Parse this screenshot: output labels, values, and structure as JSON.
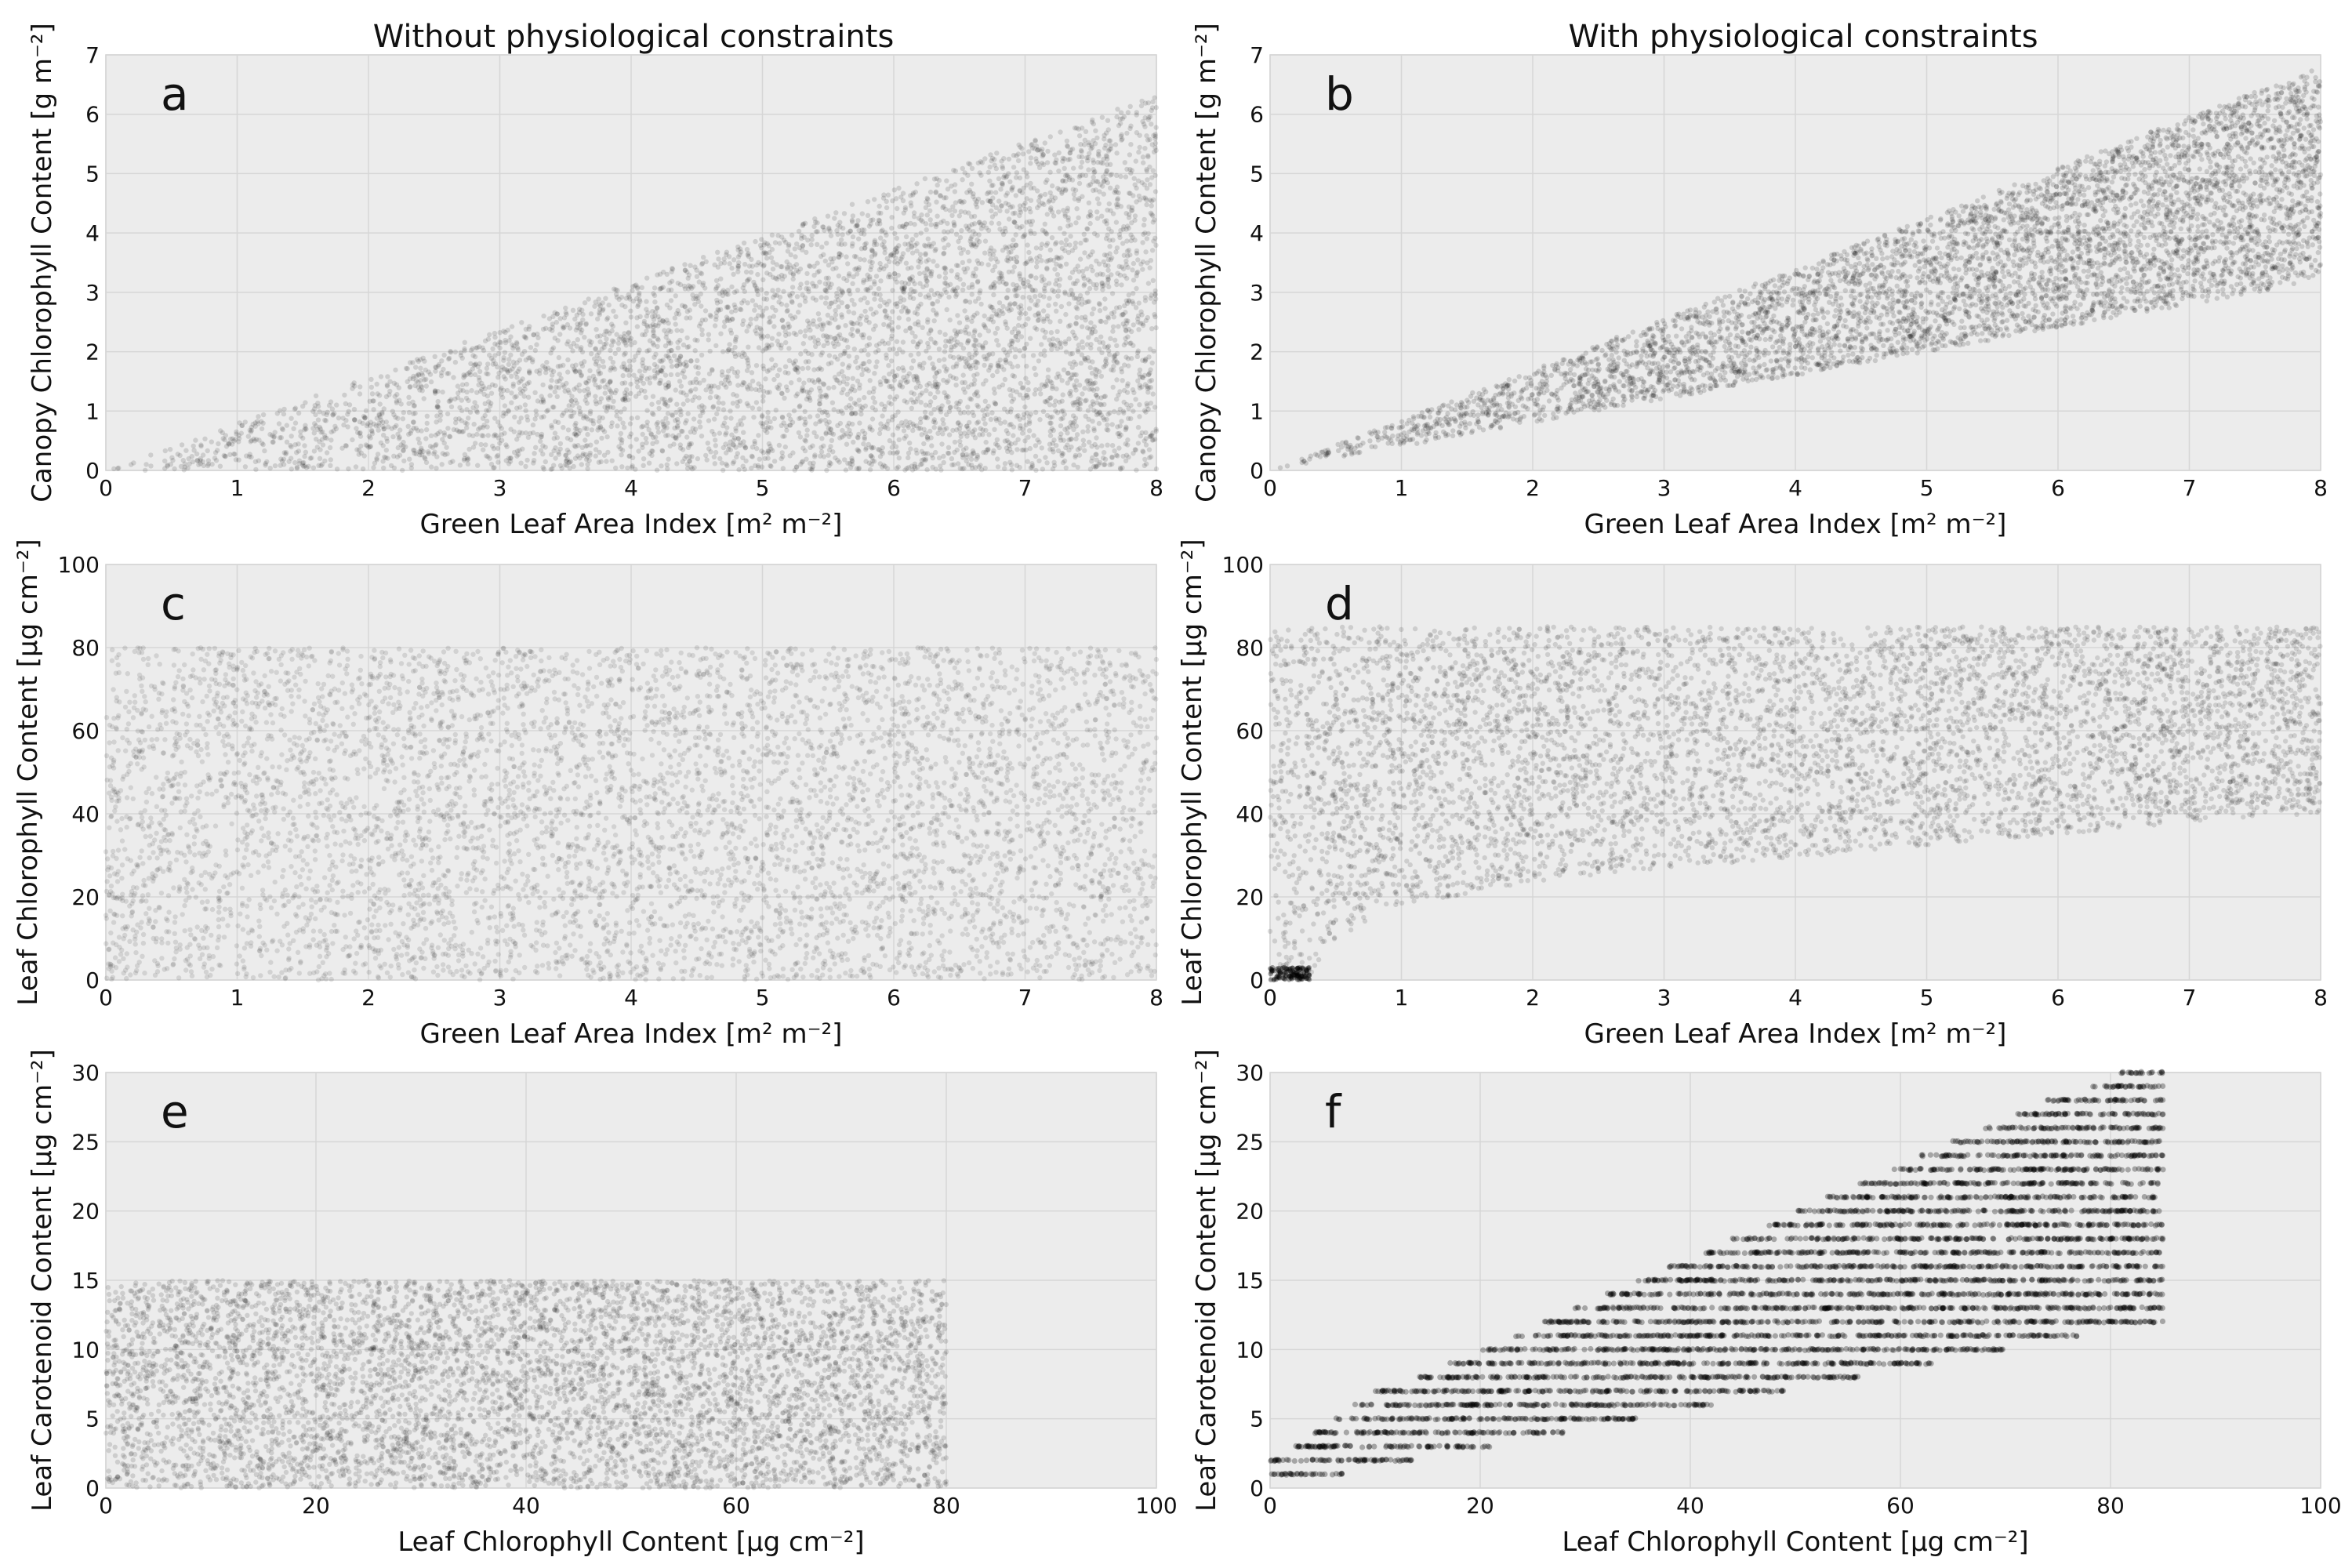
{
  "figure": {
    "column_titles": [
      "Without physiological constraints",
      "With physiological constraints"
    ]
  },
  "chart_data": [
    {
      "panel": "a",
      "type": "scatter",
      "xlabel": "Green Leaf Area Index [m² m⁻²]",
      "ylabel": "Canopy Chlorophyll Content [g m⁻²]",
      "xlim": [
        0,
        8
      ],
      "ylim": [
        0,
        7
      ],
      "xticks": [
        "0",
        "1",
        "2",
        "3",
        "4",
        "5",
        "6",
        "7",
        "8"
      ],
      "yticks": [
        "0",
        "1",
        "2",
        "3",
        "4",
        "5",
        "6",
        "7"
      ],
      "grid": true,
      "distribution": {
        "x_range": [
          0,
          8
        ],
        "y_min_fn": "0",
        "y_max_fn": "0.79*x",
        "x_max": 8,
        "y_at_x_max": 6.3
      }
    },
    {
      "panel": "b",
      "type": "scatter",
      "xlabel": "Green Leaf Area Index [m² m⁻²]",
      "ylabel": "Canopy Chlorophyll Content [g m⁻²]",
      "xlim": [
        0,
        8
      ],
      "ylim": [
        0,
        7
      ],
      "xticks": [
        "0",
        "1",
        "2",
        "3",
        "4",
        "5",
        "6",
        "7",
        "8"
      ],
      "yticks": [
        "0",
        "1",
        "2",
        "3",
        "4",
        "5",
        "6",
        "7"
      ],
      "grid": true,
      "distribution": {
        "x_range": [
          0,
          8
        ],
        "y_lower_at_x_max": 3.2,
        "y_upper_at_x_max": 6.8
      }
    },
    {
      "panel": "c",
      "type": "scatter",
      "xlabel": "Green Leaf Area Index [m² m⁻²]",
      "ylabel": "Leaf Chlorophyll Content [μg cm⁻²]",
      "xlim": [
        0,
        8
      ],
      "ylim": [
        0,
        100
      ],
      "xticks": [
        "0",
        "1",
        "2",
        "3",
        "4",
        "5",
        "6",
        "7",
        "8"
      ],
      "yticks": [
        "0",
        "20",
        "40",
        "60",
        "80",
        "100"
      ],
      "grid": true,
      "distribution": {
        "x_range": [
          0,
          8
        ],
        "y_range": [
          0,
          80
        ]
      }
    },
    {
      "panel": "d",
      "type": "scatter",
      "xlabel": "Green Leaf Area Index [m² m⁻²]",
      "ylabel": "Leaf Chlorophyll Content [μg cm⁻²]",
      "xlim": [
        0,
        8
      ],
      "ylim": [
        0,
        100
      ],
      "xticks": [
        "0",
        "1",
        "2",
        "3",
        "4",
        "5",
        "6",
        "7",
        "8"
      ],
      "yticks": [
        "0",
        "20",
        "40",
        "60",
        "80",
        "100"
      ],
      "grid": true,
      "distribution": {
        "x_range": [
          0,
          8
        ],
        "y_upper": 85,
        "lower_boundary": [
          [
            0.3,
            0
          ],
          [
            0.5,
            10
          ],
          [
            1,
            18
          ],
          [
            2,
            23
          ],
          [
            3,
            27
          ],
          [
            4,
            29.5
          ],
          [
            5,
            32.5
          ],
          [
            6,
            35
          ],
          [
            7,
            38
          ],
          [
            8,
            40
          ]
        ]
      }
    },
    {
      "panel": "e",
      "type": "scatter",
      "xlabel": "Leaf Chlorophyll Content [μg cm⁻²]",
      "ylabel": "Leaf Carotenoid Content [μg cm⁻²]",
      "xlim": [
        0,
        100
      ],
      "ylim": [
        0,
        30
      ],
      "xticks": [
        "0",
        "20",
        "40",
        "60",
        "80",
        "100"
      ],
      "yticks": [
        "0",
        "5",
        "10",
        "15",
        "20",
        "25",
        "30"
      ],
      "grid": true,
      "distribution": {
        "x_range": [
          0,
          80
        ],
        "y_range": [
          0,
          15
        ]
      }
    },
    {
      "panel": "f",
      "type": "scatter",
      "xlabel": "Leaf Chlorophyll Content [μg cm⁻²]",
      "ylabel": "Leaf Carotenoid Content [μg cm⁻²]",
      "xlim": [
        0,
        100
      ],
      "ylim": [
        0,
        30
      ],
      "xticks": [
        "0",
        "20",
        "40",
        "60",
        "80",
        "100"
      ],
      "yticks": [
        "0",
        "5",
        "10",
        "15",
        "20",
        "25",
        "30"
      ],
      "grid": true,
      "distribution": {
        "discrete_y_levels": [
          1,
          30
        ],
        "x_max": 85,
        "rows": [
          {
            "y": 1,
            "x0": 0,
            "x1": 7
          },
          {
            "y": 2,
            "x0": 0,
            "x1": 14
          },
          {
            "y": 3,
            "x0": 2,
            "x1": 21
          },
          {
            "y": 4,
            "x0": 4,
            "x1": 28
          },
          {
            "y": 5,
            "x0": 6,
            "x1": 35
          },
          {
            "y": 6,
            "x0": 8,
            "x1": 42
          },
          {
            "y": 7,
            "x0": 10,
            "x1": 49
          },
          {
            "y": 8,
            "x0": 14,
            "x1": 56
          },
          {
            "y": 9,
            "x0": 17,
            "x1": 63
          },
          {
            "y": 10,
            "x0": 20,
            "x1": 70
          },
          {
            "y": 11,
            "x0": 23,
            "x1": 77
          },
          {
            "y": 12,
            "x0": 26,
            "x1": 85
          },
          {
            "y": 13,
            "x0": 29,
            "x1": 85
          },
          {
            "y": 14,
            "x0": 32,
            "x1": 85
          },
          {
            "y": 15,
            "x0": 35,
            "x1": 85
          },
          {
            "y": 16,
            "x0": 38,
            "x1": 85
          },
          {
            "y": 17,
            "x0": 41,
            "x1": 85
          },
          {
            "y": 18,
            "x0": 44,
            "x1": 85
          },
          {
            "y": 19,
            "x0": 47,
            "x1": 85
          },
          {
            "y": 20,
            "x0": 50,
            "x1": 85
          },
          {
            "y": 21,
            "x0": 53,
            "x1": 85
          },
          {
            "y": 22,
            "x0": 56,
            "x1": 85
          },
          {
            "y": 23,
            "x0": 59,
            "x1": 85
          },
          {
            "y": 24,
            "x0": 62,
            "x1": 85
          },
          {
            "y": 25,
            "x0": 65,
            "x1": 85
          },
          {
            "y": 26,
            "x0": 68,
            "x1": 85
          },
          {
            "y": 27,
            "x0": 71,
            "x1": 85
          },
          {
            "y": 28,
            "x0": 74,
            "x1": 85
          },
          {
            "y": 29,
            "x0": 78,
            "x1": 85
          },
          {
            "y": 30,
            "x0": 81,
            "x1": 85
          }
        ]
      }
    }
  ]
}
